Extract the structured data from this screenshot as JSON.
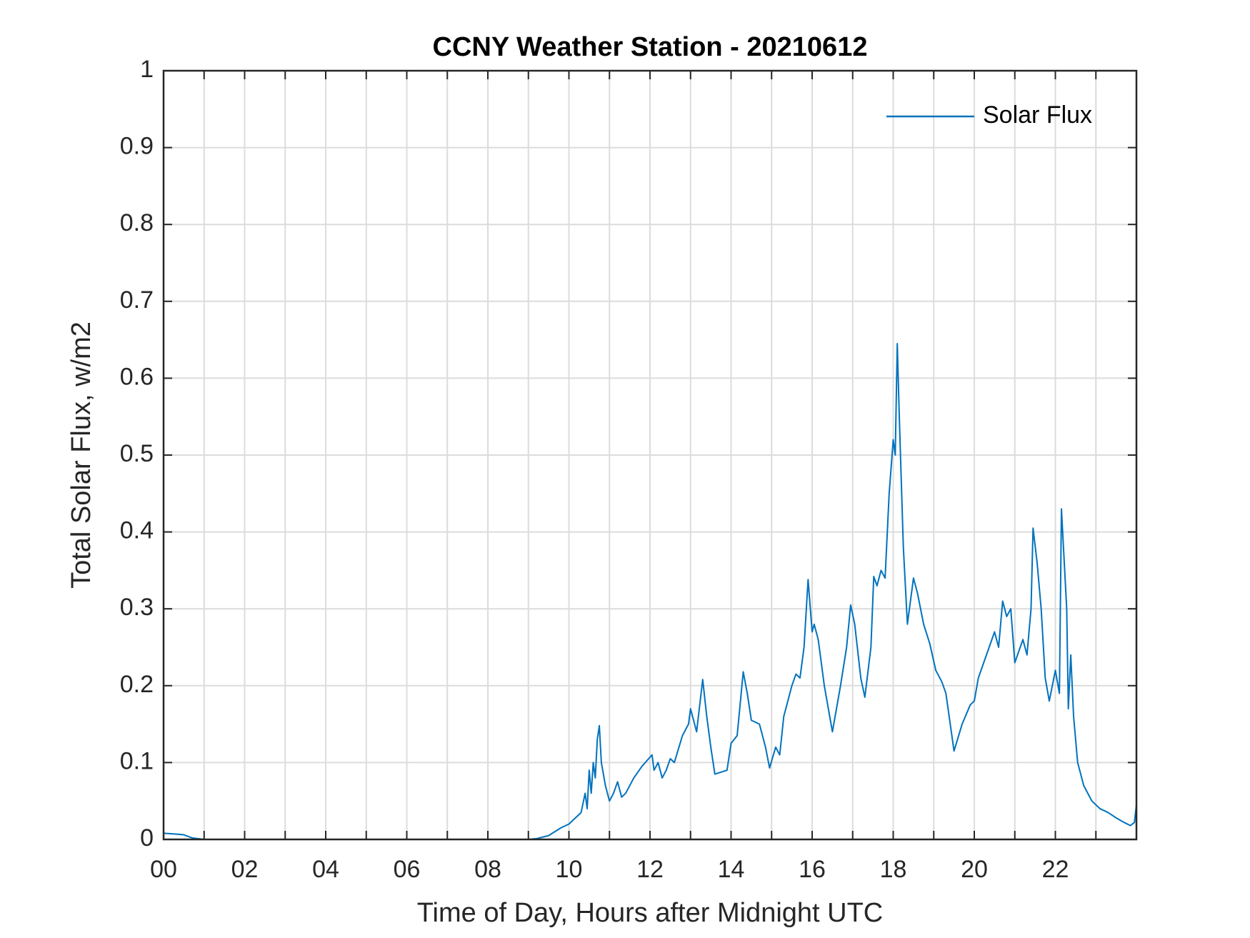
{
  "chart_data": {
    "type": "line",
    "title": "CCNY Weather Station - 20210612",
    "xlabel": "Time of Day, Hours after Midnight UTC",
    "ylabel": "Total Solar Flux, w/m2",
    "x": [
      0,
      0.3,
      0.5,
      0.7,
      1.0,
      9.0,
      9.2,
      9.5,
      9.8,
      10.0,
      10.2,
      10.3,
      10.4,
      10.45,
      10.5,
      10.55,
      10.6,
      10.65,
      10.7,
      10.75,
      10.8,
      10.9,
      11.0,
      11.1,
      11.2,
      11.3,
      11.4,
      11.6,
      11.8,
      12.05,
      12.1,
      12.2,
      12.3,
      12.4,
      12.5,
      12.6,
      12.8,
      12.95,
      13.0,
      13.05,
      13.15,
      13.3,
      13.4,
      13.5,
      13.6,
      13.9,
      14.0,
      14.15,
      14.3,
      14.4,
      14.5,
      14.7,
      14.85,
      14.95,
      15.1,
      15.2,
      15.3,
      15.5,
      15.6,
      15.7,
      15.8,
      15.9,
      16.0,
      16.05,
      16.15,
      16.3,
      16.5,
      16.7,
      16.85,
      16.95,
      17.05,
      17.2,
      17.3,
      17.45,
      17.52,
      17.6,
      17.7,
      17.8,
      17.9,
      18.0,
      18.05,
      18.1,
      18.15,
      18.25,
      18.35,
      18.5,
      18.6,
      18.75,
      18.9,
      19.05,
      19.2,
      19.3,
      19.5,
      19.7,
      19.9,
      20.0,
      20.1,
      20.3,
      20.5,
      20.6,
      20.7,
      20.8,
      20.9,
      21.0,
      21.2,
      21.3,
      21.4,
      21.45,
      21.55,
      21.65,
      21.75,
      21.85,
      22.0,
      22.1,
      22.15,
      22.28,
      22.32,
      22.38,
      22.45,
      22.55,
      22.7,
      22.9,
      23.1,
      23.3,
      23.5,
      23.7,
      23.85,
      23.95,
      24.0
    ],
    "series": [
      {
        "name": "Solar Flux",
        "color": "#0072bd",
        "values": [
          0.008,
          0.007,
          0.006,
          0.002,
          0,
          0,
          0.001,
          0.005,
          0.015,
          0.02,
          0.03,
          0.035,
          0.06,
          0.04,
          0.09,
          0.06,
          0.1,
          0.08,
          0.13,
          0.148,
          0.1,
          0.07,
          0.05,
          0.06,
          0.075,
          0.055,
          0.06,
          0.08,
          0.095,
          0.11,
          0.09,
          0.1,
          0.08,
          0.09,
          0.105,
          0.1,
          0.135,
          0.15,
          0.17,
          0.16,
          0.14,
          0.208,
          0.16,
          0.12,
          0.085,
          0.09,
          0.125,
          0.135,
          0.218,
          0.19,
          0.155,
          0.15,
          0.12,
          0.093,
          0.12,
          0.11,
          0.16,
          0.2,
          0.215,
          0.21,
          0.25,
          0.338,
          0.27,
          0.28,
          0.26,
          0.2,
          0.14,
          0.2,
          0.25,
          0.305,
          0.28,
          0.21,
          0.185,
          0.25,
          0.342,
          0.33,
          0.35,
          0.34,
          0.45,
          0.52,
          0.5,
          0.645,
          0.55,
          0.38,
          0.28,
          0.34,
          0.32,
          0.28,
          0.255,
          0.22,
          0.205,
          0.19,
          0.115,
          0.15,
          0.175,
          0.18,
          0.21,
          0.24,
          0.27,
          0.25,
          0.31,
          0.29,
          0.3,
          0.23,
          0.26,
          0.24,
          0.3,
          0.405,
          0.36,
          0.3,
          0.21,
          0.18,
          0.22,
          0.19,
          0.43,
          0.3,
          0.17,
          0.24,
          0.16,
          0.1,
          0.07,
          0.05,
          0.04,
          0.035,
          0.028,
          0.022,
          0.018,
          0.022,
          0.045
        ]
      }
    ],
    "xlim": [
      0,
      24
    ],
    "xticks": [
      {
        "value": 0,
        "label": "00"
      },
      {
        "value": 2,
        "label": "02"
      },
      {
        "value": 4,
        "label": "04"
      },
      {
        "value": 6,
        "label": "06"
      },
      {
        "value": 8,
        "label": "08"
      },
      10,
      12,
      14,
      16,
      18,
      20,
      22
    ],
    "xminorticks": [
      1,
      3,
      5,
      7,
      9,
      11,
      13,
      15,
      17,
      19,
      21,
      23
    ],
    "ylim": [
      0,
      1
    ],
    "yticks": [
      0,
      0.1,
      0.2,
      0.3,
      0.4,
      0.5,
      0.6,
      0.7,
      0.8,
      0.9,
      1
    ],
    "grid": true,
    "legend": "upper right"
  }
}
